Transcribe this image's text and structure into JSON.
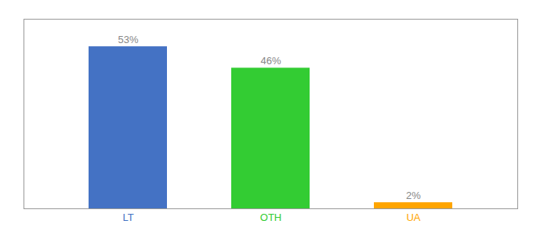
{
  "chart_data": {
    "type": "bar",
    "categories": [
      "LT",
      "OTH",
      "UA"
    ],
    "values": [
      53,
      46,
      2
    ],
    "value_labels": [
      "53%",
      "46%",
      "2%"
    ],
    "colors": [
      "#4472C4",
      "#33CC33",
      "#FFA500"
    ],
    "ylim": [
      0,
      62
    ],
    "tick_labels": "x",
    "data_labels": true
  }
}
